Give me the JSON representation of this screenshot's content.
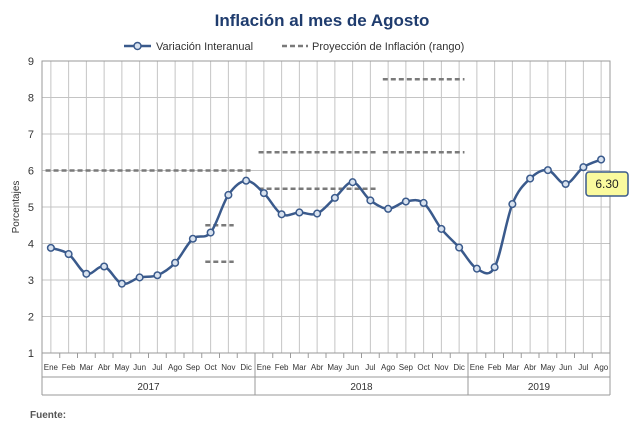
{
  "title": "Inflación al mes de Agosto",
  "source_label": "Fuente:",
  "callout": "6.30",
  "chart_data": {
    "type": "line",
    "ylabel": "Porcentajes",
    "ylim": [
      1,
      9
    ],
    "yticks": [
      "1",
      "2",
      "3",
      "4",
      "5",
      "6",
      "7",
      "8",
      "9"
    ],
    "grid": true,
    "legend_position": "top",
    "categories": [
      "Ene",
      "Feb",
      "Mar",
      "Abr",
      "May",
      "Jun",
      "Jul",
      "Ago",
      "Sep",
      "Oct",
      "Nov",
      "Dic",
      "Ene",
      "Feb",
      "Mar",
      "Abr",
      "May",
      "Jun",
      "Jul",
      "Ago",
      "Sep",
      "Oct",
      "Nov",
      "Dic",
      "Ene",
      "Feb",
      "Mar",
      "Abr",
      "May",
      "Jun",
      "Jul",
      "Ago"
    ],
    "years": [
      {
        "label": "2017",
        "start": 0,
        "end": 11
      },
      {
        "label": "2018",
        "start": 12,
        "end": 23
      },
      {
        "label": "2019",
        "start": 24,
        "end": 31
      }
    ],
    "series": [
      {
        "name": "Variación Interanual",
        "color": "#3a5a8c",
        "values": [
          3.88,
          3.71,
          3.17,
          3.37,
          2.9,
          3.07,
          3.13,
          3.47,
          4.13,
          4.3,
          5.33,
          5.72,
          5.38,
          4.8,
          4.85,
          4.82,
          5.25,
          5.68,
          5.18,
          4.95,
          5.15,
          5.11,
          4.4,
          3.89,
          3.31,
          3.35,
          5.08,
          5.78,
          6.01,
          5.63,
          6.09,
          6.3
        ]
      }
    ],
    "range_series": {
      "name": "Proyección de Inflación (rango)",
      "color": "#7a7a7a",
      "segments": [
        {
          "start": 0,
          "end": 11,
          "value": 6.0
        },
        {
          "start": 12,
          "end": 18,
          "value": 6.5
        },
        {
          "start": 12,
          "end": 18,
          "value": 5.5
        },
        {
          "start": 19,
          "end": 23,
          "value": 8.5
        },
        {
          "start": 19,
          "end": 23,
          "value": 6.5
        },
        {
          "start": 9,
          "end": 10,
          "value": 4.5
        },
        {
          "start": 9,
          "end": 10,
          "value": 3.5
        }
      ]
    }
  }
}
